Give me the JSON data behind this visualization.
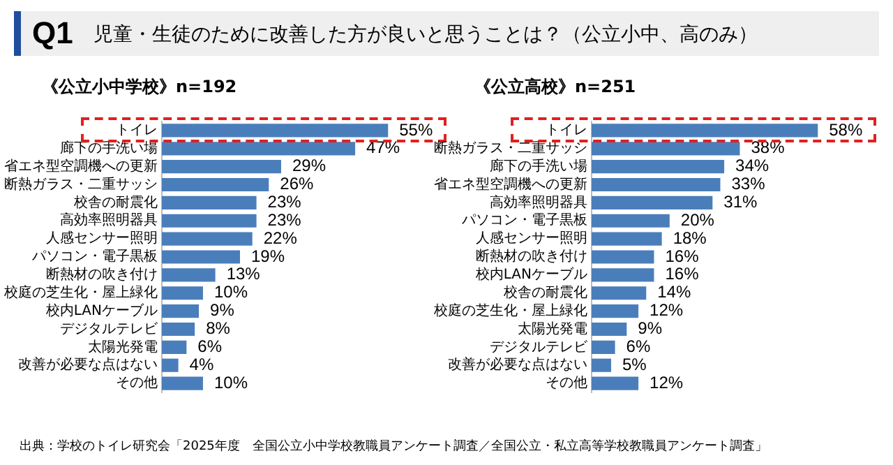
{
  "chart_data": [
    {
      "type": "bar",
      "orientation": "horizontal",
      "title": "《公立小中学校》n=192",
      "annotations": [
        "Q1",
        "児童・生徒のために改善した方が良いと思うことは？（公立小中、高のみ）",
        "出典：学校のトイレ研究会「2025年度　全国公立小中学校教職員アンケート調査／全国公立・私立高等学校教職員アンケート調査」"
      ],
      "categories": [
        "トイレ",
        "廊下の手洗い場",
        "省エネ型空調機への更新",
        "断熱ガラス・二重サッシ",
        "校舎の耐震化",
        "高効率照明器具",
        "人感センサー照明",
        "パソコン・電子黒板",
        "断熱材の吹き付け",
        "校庭の芝生化・屋上緑化",
        "校内LANケーブル",
        "デジタルテレビ",
        "太陽光発電",
        "改善が必要な点はない",
        "その他"
      ],
      "values": [
        55,
        47,
        29,
        26,
        23,
        23,
        22,
        19,
        13,
        10,
        9,
        8,
        6,
        4,
        10
      ],
      "value_labels": [
        "55%",
        "47%",
        "29%",
        "26%",
        "23%",
        "23%",
        "22%",
        "19%",
        "13%",
        "10%",
        "9%",
        "8%",
        "6%",
        "4%",
        "10%"
      ],
      "color": "#4a7ebb",
      "grid": false,
      "legend": false,
      "tick_labels": "y"
    },
    {
      "type": "bar",
      "orientation": "horizontal",
      "title": "《公立高校》n=251",
      "categories": [
        "トイレ",
        "断熱ガラス・二重サッシ",
        "廊下の手洗い場",
        "省エネ型空調機への更新",
        "高効率照明器具",
        "パソコン・電子黒板",
        "人感センサー照明",
        "断熱材の吹き付け",
        "校内LANケーブル",
        "校舎の耐震化",
        "校庭の芝生化・屋上緑化",
        "太陽光発電",
        "デジタルテレビ",
        "改善が必要な点はない",
        "その他"
      ],
      "values": [
        58,
        38,
        34,
        33,
        31,
        20,
        18,
        16,
        16,
        14,
        12,
        9,
        6,
        5,
        12
      ],
      "value_labels": [
        "58%",
        "38%",
        "34%",
        "33%",
        "31%",
        "20%",
        "18%",
        "16%",
        "16%",
        "14%",
        "12%",
        "9%",
        "6%",
        "5%",
        "12%"
      ],
      "color": "#4a7ebb",
      "grid": false,
      "legend": false,
      "tick_labels": "y"
    }
  ]
}
